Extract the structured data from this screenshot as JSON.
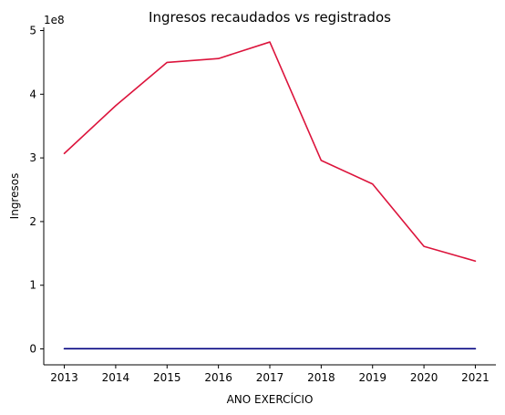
{
  "chart_data": {
    "type": "line",
    "title": "Ingresos recaudados vs registrados",
    "xlabel": "ANO EXERCÍCIO",
    "ylabel": "Ingresos",
    "y_offset_label": "1e8",
    "y_scale": 100000000,
    "x": [
      2013,
      2014,
      2015,
      2016,
      2017,
      2018,
      2019,
      2020,
      2021
    ],
    "x_ticks": [
      "2013",
      "2014",
      "2015",
      "2016",
      "2017",
      "2018",
      "2019",
      "2020",
      "2021"
    ],
    "y_ticks": [
      0,
      1,
      2,
      3,
      4,
      5
    ],
    "y_tick_labels": [
      "0",
      "1",
      "2",
      "3",
      "4",
      "5"
    ],
    "ylim": [
      -0.25,
      5.05
    ],
    "xlim": [
      2012.6,
      2021.4
    ],
    "grid": false,
    "legend": "none",
    "series": [
      {
        "color": "#dc143c",
        "values": [
          3.07,
          3.82,
          4.5,
          4.56,
          4.82,
          2.96,
          2.59,
          1.61,
          1.38
        ]
      },
      {
        "color": "#000080",
        "values": [
          0.003,
          0.003,
          0.003,
          0.003,
          0.003,
          0.003,
          0.003,
          0.003,
          0.003
        ]
      }
    ]
  }
}
